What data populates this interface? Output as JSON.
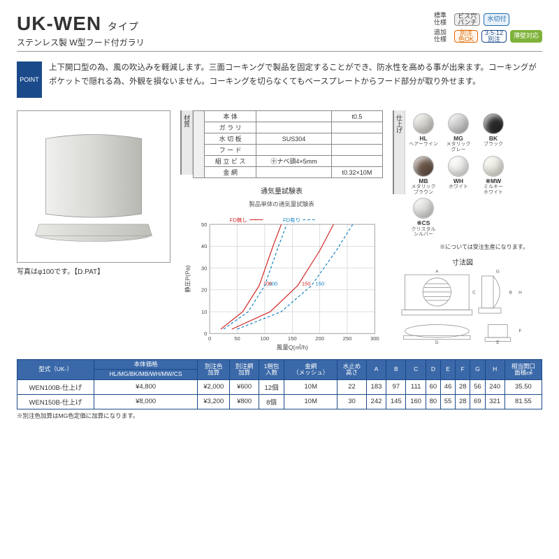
{
  "header": {
    "model": "UK-WEN",
    "model_suffix": "タイプ",
    "subtitle": "ステンレス製 W型フード付ガラリ",
    "spec_rows": [
      {
        "label": "標準\n仕様",
        "badges": [
          {
            "text": "ビス穴\nパンチ",
            "cls": ""
          },
          {
            "text": "水切付",
            "cls": "blue-out"
          }
        ]
      },
      {
        "label": "追加\n仕様",
        "badges": [
          {
            "text": "別注\n色OK",
            "cls": "orange"
          },
          {
            "text": "3·5·12\n別注",
            "cls": "navy"
          },
          {
            "text": "薄壁対応",
            "cls": "green"
          }
        ]
      }
    ]
  },
  "point": {
    "label": "POINT",
    "text": "上下開口型の為、風の吹込みを軽減します。三面コーキングで製品を固定することができ、防水性を高める事が出来ます。コーキングがポケットで隠れる為、外観を損ないません。コーキングを切らなくてもベースプレートからフード部分が取り外せます。"
  },
  "photo_caption": "写真はφ100です。【D.PAT】",
  "material": {
    "label": "材質",
    "rows": [
      [
        "本  体",
        "",
        "t0.5"
      ],
      [
        "ガ ラ リ",
        "",
        ""
      ],
      [
        "水 切 板",
        "SUS304",
        ""
      ],
      [
        "フ ー ド",
        "",
        ""
      ],
      [
        "組 立 ビ ス",
        "㊉ナベ頭4×5mm",
        ""
      ],
      [
        "金    網",
        "",
        "t0.32×10M"
      ]
    ]
  },
  "chart": {
    "title": "通気量試験表",
    "subtitle": "製品単体の通気量試験表",
    "legend_left": "FD無し",
    "legend_right": "FD有り",
    "ylabel": "静圧P(Pa)",
    "xlabel": "風量Q(㎥/h)",
    "ylim": [
      0,
      50
    ],
    "ytick": [
      0,
      10,
      20,
      30,
      40,
      50
    ],
    "xlim": [
      0,
      300
    ],
    "xtick": [
      0,
      50,
      100,
      150,
      200,
      250,
      300
    ],
    "series": [
      {
        "label": "100",
        "color": "#d02020",
        "dash": "0",
        "pts": [
          [
            20,
            2
          ],
          [
            60,
            10
          ],
          [
            90,
            22
          ],
          [
            115,
            40
          ],
          [
            130,
            50
          ]
        ]
      },
      {
        "label": "150",
        "color": "#d02020",
        "dash": "0",
        "pts": [
          [
            40,
            2
          ],
          [
            110,
            10
          ],
          [
            160,
            22
          ],
          [
            200,
            38
          ],
          [
            225,
            50
          ]
        ]
      },
      {
        "label": "100",
        "color": "#1080c0",
        "dash": "4 3",
        "pts": [
          [
            25,
            2
          ],
          [
            70,
            10
          ],
          [
            100,
            22
          ],
          [
            125,
            40
          ],
          [
            140,
            50
          ]
        ]
      },
      {
        "label": "150",
        "color": "#1080c0",
        "dash": "4 3",
        "pts": [
          [
            50,
            2
          ],
          [
            130,
            10
          ],
          [
            185,
            22
          ],
          [
            230,
            38
          ],
          [
            260,
            50
          ]
        ]
      }
    ],
    "bg": "#ffffff",
    "grid": "#bbbbbb"
  },
  "finish": {
    "label": "仕上げ",
    "swatches": [
      {
        "code": "HL",
        "name": "ヘアーライン",
        "color": "#d8d5cf"
      },
      {
        "code": "MG",
        "name": "メタリック\nグレー",
        "color": "#cfcfcf"
      },
      {
        "code": "BK",
        "name": "ブラック",
        "color": "#2b2b2b"
      },
      {
        "code": "MB",
        "name": "メタリック\nブラウン",
        "color": "#6b5648"
      },
      {
        "code": "WH",
        "name": "ホワイト",
        "color": "#f5f5f2"
      },
      {
        "code": "※MW",
        "name": "ミルキー\nホワイト",
        "color": "#efede4"
      },
      {
        "code": "※CS",
        "name": "クリスタル\nシルバー",
        "color": "#e2e2df"
      }
    ],
    "note": "※については受注生産になります。"
  },
  "dim_title": "寸法図",
  "table": {
    "headers_top": [
      "型式（UK-）",
      "本体価格",
      "別注色\n加算",
      "別注網\n加算",
      "1梱包\n入数",
      "金網\n（メッシュ）",
      "水止め\n高さ",
      "A",
      "B",
      "C",
      "D",
      "E",
      "F",
      "G",
      "H",
      "相当開口\n面積㎠"
    ],
    "price_sub": "HL/MG/BK/MB/WH/MW/CS",
    "rows": [
      [
        "WEN100B-仕上げ",
        "¥4,800",
        "¥2,000",
        "¥600",
        "12個",
        "10M",
        "22",
        "183",
        "97",
        "111",
        "60",
        "46",
        "28",
        "56",
        "240",
        "35.50"
      ],
      [
        "WEN150B-仕上げ",
        "¥8,000",
        "¥3,200",
        "¥800",
        "8個",
        "10M",
        "30",
        "242",
        "145",
        "160",
        "80",
        "55",
        "28",
        "69",
        "321",
        "81.55"
      ]
    ],
    "footnote": "※別注色加算はMG色定価に加算になります。"
  },
  "colors": {
    "brand": "#1a4a8a",
    "thead": "#3a68a8"
  }
}
